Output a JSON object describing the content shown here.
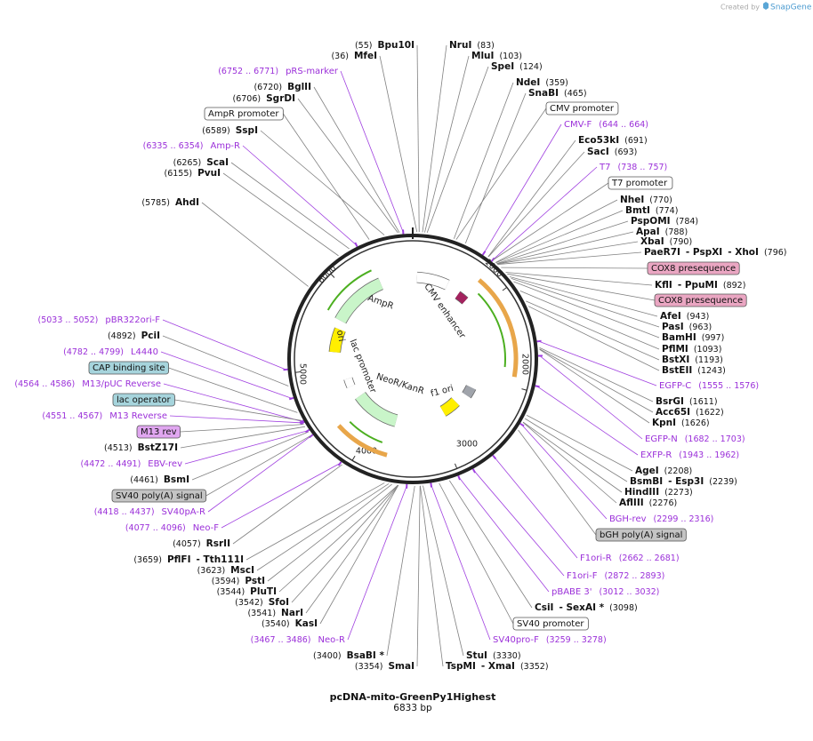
{
  "header": {
    "created_by": "Created by",
    "brand": "SnapGene"
  },
  "map": {
    "name": "pcDNA-mito-GreenPy1Highest",
    "length": "6833 bp",
    "ring_ticks": [
      "1000",
      "2000",
      "3000",
      "4000",
      "5000",
      "6000"
    ],
    "inner_features": [
      "AmpR",
      "ori",
      "lac promoter",
      "NeoR/KanR",
      "f1 ori",
      "CMV enhancer"
    ],
    "enzymes": [
      {
        "names": [
          "Bpu10I"
        ],
        "position": "(55)"
      },
      {
        "names": [
          "MfeI"
        ],
        "position": "(36)"
      },
      {
        "names": [
          "NruI"
        ],
        "position": "(83)"
      },
      {
        "names": [
          "MluI"
        ],
        "position": "(103)"
      },
      {
        "names": [
          "SpeI"
        ],
        "position": "(124)"
      },
      {
        "names": [
          "NdeI"
        ],
        "position": "(359)"
      },
      {
        "names": [
          "SnaBI"
        ],
        "position": "(465)"
      },
      {
        "names": [
          "BglII"
        ],
        "position": "(6720)"
      },
      {
        "names": [
          "SgrDI"
        ],
        "position": "(6706)"
      },
      {
        "names": [
          "SspI"
        ],
        "position": "(6589)"
      },
      {
        "names": [
          "ScaI"
        ],
        "position": "(6265)"
      },
      {
        "names": [
          "PvuI"
        ],
        "position": "(6155)"
      },
      {
        "names": [
          "AhdI"
        ],
        "position": "(5785)"
      },
      {
        "names": [
          "Eco53kI"
        ],
        "position": "(691)"
      },
      {
        "names": [
          "SacI"
        ],
        "position": "(693)"
      },
      {
        "names": [
          "NheI"
        ],
        "position": "(770)"
      },
      {
        "names": [
          "BmtI"
        ],
        "position": "(774)"
      },
      {
        "names": [
          "PspOMI"
        ],
        "position": "(784)"
      },
      {
        "names": [
          "ApaI"
        ],
        "position": "(788)"
      },
      {
        "names": [
          "XbaI"
        ],
        "position": "(790)"
      },
      {
        "names": [
          "PaeR7I",
          "- PspXI",
          "- XhoI"
        ],
        "position": "(796)"
      },
      {
        "names": [
          "KflI",
          "- PpuMI"
        ],
        "position": "(892)"
      },
      {
        "names": [
          "AfeI"
        ],
        "position": "(943)"
      },
      {
        "names": [
          "PasI"
        ],
        "position": "(963)"
      },
      {
        "names": [
          "BamHI"
        ],
        "position": "(997)"
      },
      {
        "names": [
          "PflMI"
        ],
        "position": "(1093)"
      },
      {
        "names": [
          "BstXI"
        ],
        "position": "(1193)"
      },
      {
        "names": [
          "BstEII"
        ],
        "position": "(1243)"
      },
      {
        "names": [
          "BsrGI"
        ],
        "position": "(1611)"
      },
      {
        "names": [
          "Acc65I"
        ],
        "position": "(1622)"
      },
      {
        "names": [
          "KpnI"
        ],
        "position": "(1626)"
      },
      {
        "names": [
          "AgeI"
        ],
        "position": "(2208)"
      },
      {
        "names": [
          "BsmBI",
          "- Esp3I"
        ],
        "position": "(2239)"
      },
      {
        "names": [
          "HindIII"
        ],
        "position": "(2273)"
      },
      {
        "names": [
          "AflIII"
        ],
        "position": "(2276)"
      },
      {
        "names": [
          "CsiI",
          "- SexAI *"
        ],
        "position": "(3098)"
      },
      {
        "names": [
          "StuI"
        ],
        "position": "(3330)"
      },
      {
        "names": [
          "TspMI",
          "- XmaI"
        ],
        "position": "(3352)"
      },
      {
        "names": [
          "SmaI"
        ],
        "position": "(3354)"
      },
      {
        "names": [
          "BsaBI *"
        ],
        "position": "(3400)"
      },
      {
        "names": [
          "KasI"
        ],
        "position": "(3540)"
      },
      {
        "names": [
          "NarI"
        ],
        "position": "(3541)"
      },
      {
        "names": [
          "SfoI"
        ],
        "position": "(3542)"
      },
      {
        "names": [
          "PluTI"
        ],
        "position": "(3544)"
      },
      {
        "names": [
          "PstI"
        ],
        "position": "(3594)"
      },
      {
        "names": [
          "MscI"
        ],
        "position": "(3623)"
      },
      {
        "names": [
          "PflFI",
          "- Tth111I"
        ],
        "position": "(3659)"
      },
      {
        "names": [
          "RsrII"
        ],
        "position": "(4057)"
      },
      {
        "names": [
          "BsmI"
        ],
        "position": "(4461)"
      },
      {
        "names": [
          "BstZ17I"
        ],
        "position": "(4513)"
      },
      {
        "names": [
          "PciI"
        ],
        "position": "(4892)"
      }
    ],
    "primers": [
      {
        "name": "pRS-marker",
        "range": "(6752 .. 6771)"
      },
      {
        "name": "Amp-R",
        "range": "(6335 .. 6354)"
      },
      {
        "name": "CMV-F",
        "range": "(644 .. 664)"
      },
      {
        "name": "T7",
        "range": "(738 .. 757)"
      },
      {
        "name": "EGFP-C",
        "range": "(1555 .. 1576)"
      },
      {
        "name": "EGFP-N",
        "range": "(1682 .. 1703)"
      },
      {
        "name": "EXFP-R",
        "range": "(1943 .. 1962)"
      },
      {
        "name": "BGH-rev",
        "range": "(2299 .. 2316)"
      },
      {
        "name": "F1ori-R",
        "range": "(2662 .. 2681)"
      },
      {
        "name": "F1ori-F",
        "range": "(2872 .. 2893)"
      },
      {
        "name": "pBABE 3'",
        "range": "(3012 .. 3032)"
      },
      {
        "name": "SV40pro-F",
        "range": "(3259 .. 3278)"
      },
      {
        "name": "Neo-R",
        "range": "(3467 .. 3486)"
      },
      {
        "name": "Neo-F",
        "range": "(4077 .. 4096)"
      },
      {
        "name": "SV40pA-R",
        "range": "(4418 .. 4437)"
      },
      {
        "name": "EBV-rev",
        "range": "(4472 .. 4491)"
      },
      {
        "name": "M13 Reverse",
        "range": "(4551 .. 4567)"
      },
      {
        "name": "M13/pUC Reverse",
        "range": "(4564 .. 4586)"
      },
      {
        "name": "L4440",
        "range": "(4782 .. 4799)"
      },
      {
        "name": "pBR322ori-F",
        "range": "(5033 .. 5052)"
      }
    ],
    "features": [
      {
        "name": "AmpR promoter",
        "color": "#ffffff"
      },
      {
        "name": "CMV promoter",
        "color": "#ffffff"
      },
      {
        "name": "T7 promoter",
        "color": "#ffffff"
      },
      {
        "name": "COX8 presequence",
        "color": "#eaa6c2"
      },
      {
        "name": "COX8 presequence",
        "color": "#eaa6c2"
      },
      {
        "name": "bGH poly(A) signal",
        "color": "#c4c4c4"
      },
      {
        "name": "SV40 promoter",
        "color": "#ffffff"
      },
      {
        "name": "SV40 poly(A) signal",
        "color": "#c4c4c4"
      },
      {
        "name": "M13 rev",
        "color": "#e0a6f0"
      },
      {
        "name": "lac operator",
        "color": "#a6d4dc"
      },
      {
        "name": "CAP binding site",
        "color": "#a6d4dc"
      }
    ]
  }
}
